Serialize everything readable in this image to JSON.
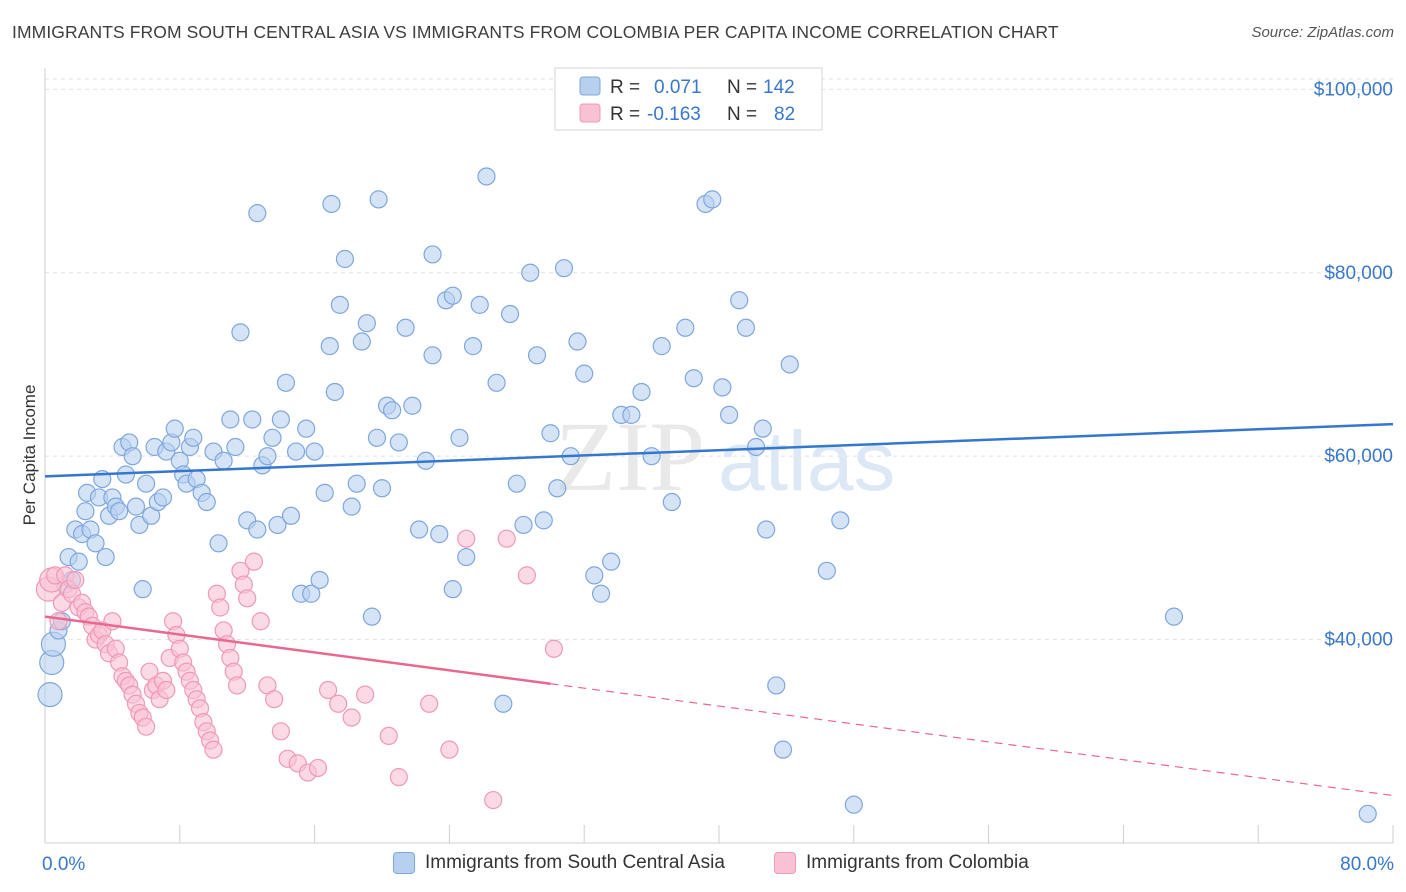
{
  "title": "IMMIGRANTS FROM SOUTH CENTRAL ASIA VS IMMIGRANTS FROM COLOMBIA PER CAPITA INCOME CORRELATION CHART",
  "source": "Source: ZipAtlas.com",
  "watermark": {
    "zip": "ZIP",
    "atlas": "atlas"
  },
  "legend_stats": [
    {
      "r_label": "R =",
      "r_value": "0.071",
      "n_label": "N =",
      "n_value": "142"
    },
    {
      "r_label": "R =",
      "r_value": "-0.163",
      "n_label": "N =",
      "n_value": "82"
    }
  ],
  "colors": {
    "blue_fill": "#b8d0f0",
    "blue_stroke": "#7fa7dd",
    "blue_line": "#3477cf",
    "pink_fill": "#f8c2d4",
    "pink_stroke": "#f098b7",
    "pink_line": "#e8688f",
    "value_text": "#3777cc",
    "grid": "#e1e1e1"
  },
  "chart_data": {
    "type": "scatter",
    "title": "IMMIGRANTS FROM SOUTH CENTRAL ASIA VS IMMIGRANTS FROM COLOMBIA PER CAPITA INCOME CORRELATION CHART",
    "xlabel": "",
    "ylabel": "Per Capita Income",
    "xlim": [
      0,
      80
    ],
    "ylim": [
      20000,
      102000
    ],
    "x_tick_labels": [
      {
        "value": 0,
        "label": "0.0%"
      },
      {
        "value": 80,
        "label": "80.0%"
      }
    ],
    "x_minor_ticks": [
      0,
      8,
      16,
      24,
      32,
      40,
      48,
      56,
      64,
      72,
      80
    ],
    "y_ticks": [
      {
        "value": 40000,
        "label": "$40,000"
      },
      {
        "value": 60000,
        "label": "$60,000"
      },
      {
        "value": 80000,
        "label": "$80,000"
      },
      {
        "value": 100000,
        "label": "$100,000"
      }
    ],
    "grid": true,
    "legend_position": "top-center",
    "series": [
      {
        "name": "Immigrants from South Central Asia",
        "color": "#7fa7dd",
        "r": 0.071,
        "n": 142,
        "trend": {
          "x": [
            0,
            80
          ],
          "y": [
            57800,
            63500
          ],
          "dashed_from_x": null
        },
        "points": [
          [
            0.3,
            34000
          ],
          [
            0.4,
            37500
          ],
          [
            0.5,
            39500
          ],
          [
            0.8,
            41000
          ],
          [
            1.0,
            42000
          ],
          [
            1.2,
            46000
          ],
          [
            1.4,
            49000
          ],
          [
            1.6,
            46500
          ],
          [
            1.8,
            52000
          ],
          [
            2.0,
            48500
          ],
          [
            2.2,
            51500
          ],
          [
            2.4,
            54000
          ],
          [
            2.5,
            56000
          ],
          [
            2.7,
            52000
          ],
          [
            3.0,
            50500
          ],
          [
            3.2,
            55500
          ],
          [
            3.4,
            57500
          ],
          [
            3.6,
            49000
          ],
          [
            3.8,
            53500
          ],
          [
            4.0,
            55500
          ],
          [
            4.2,
            54500
          ],
          [
            4.4,
            54000
          ],
          [
            4.6,
            61000
          ],
          [
            4.8,
            58000
          ],
          [
            5.0,
            61500
          ],
          [
            5.2,
            60000
          ],
          [
            5.4,
            54500
          ],
          [
            5.6,
            52500
          ],
          [
            5.8,
            45500
          ],
          [
            6.0,
            57000
          ],
          [
            6.3,
            53500
          ],
          [
            6.5,
            61000
          ],
          [
            6.7,
            55000
          ],
          [
            7.0,
            55500
          ],
          [
            7.2,
            60500
          ],
          [
            7.5,
            61500
          ],
          [
            7.7,
            63000
          ],
          [
            8.0,
            59500
          ],
          [
            8.2,
            58000
          ],
          [
            8.4,
            57000
          ],
          [
            8.6,
            61000
          ],
          [
            8.8,
            62000
          ],
          [
            9.0,
            57500
          ],
          [
            9.3,
            56000
          ],
          [
            9.6,
            55000
          ],
          [
            10.0,
            60500
          ],
          [
            10.3,
            50500
          ],
          [
            10.6,
            59500
          ],
          [
            11.0,
            64000
          ],
          [
            11.3,
            61000
          ],
          [
            11.6,
            73500
          ],
          [
            12.0,
            53000
          ],
          [
            12.3,
            64000
          ],
          [
            12.6,
            52000
          ],
          [
            12.9,
            59000
          ],
          [
            13.2,
            60000
          ],
          [
            13.5,
            62000
          ],
          [
            13.8,
            52500
          ],
          [
            14.0,
            64000
          ],
          [
            14.3,
            68000
          ],
          [
            14.6,
            53500
          ],
          [
            14.9,
            60500
          ],
          [
            15.2,
            45000
          ],
          [
            15.5,
            63000
          ],
          [
            15.8,
            45000
          ],
          [
            16.0,
            60500
          ],
          [
            16.3,
            46500
          ],
          [
            16.6,
            56000
          ],
          [
            16.9,
            72000
          ],
          [
            17.2,
            67000
          ],
          [
            17.5,
            76500
          ],
          [
            17.8,
            81500
          ],
          [
            18.2,
            54500
          ],
          [
            18.5,
            57000
          ],
          [
            18.8,
            72500
          ],
          [
            19.1,
            74500
          ],
          [
            19.4,
            42500
          ],
          [
            19.7,
            62000
          ],
          [
            20.0,
            56500
          ],
          [
            20.3,
            65500
          ],
          [
            20.6,
            65000
          ],
          [
            21.0,
            61500
          ],
          [
            21.4,
            74000
          ],
          [
            21.8,
            65500
          ],
          [
            22.2,
            52000
          ],
          [
            22.6,
            59500
          ],
          [
            23.0,
            71000
          ],
          [
            23.4,
            51500
          ],
          [
            23.8,
            77000
          ],
          [
            24.2,
            45500
          ],
          [
            24.6,
            62000
          ],
          [
            25.0,
            49000
          ],
          [
            25.4,
            72000
          ],
          [
            25.8,
            76500
          ],
          [
            26.2,
            90500
          ],
          [
            26.8,
            68000
          ],
          [
            27.2,
            33000
          ],
          [
            27.6,
            75500
          ],
          [
            28.0,
            57000
          ],
          [
            28.4,
            52500
          ],
          [
            28.8,
            80000
          ],
          [
            29.2,
            71000
          ],
          [
            29.6,
            53000
          ],
          [
            30.0,
            62500
          ],
          [
            30.4,
            56500
          ],
          [
            30.8,
            80500
          ],
          [
            31.2,
            60000
          ],
          [
            31.6,
            72500
          ],
          [
            32.0,
            69000
          ],
          [
            32.6,
            47000
          ],
          [
            33.0,
            45000
          ],
          [
            33.6,
            48500
          ],
          [
            34.2,
            64500
          ],
          [
            34.8,
            64500
          ],
          [
            35.4,
            67000
          ],
          [
            36.0,
            60000
          ],
          [
            36.6,
            72000
          ],
          [
            37.2,
            55000
          ],
          [
            38.0,
            74000
          ],
          [
            38.5,
            68500
          ],
          [
            39.2,
            87500
          ],
          [
            39.6,
            88000
          ],
          [
            40.2,
            67500
          ],
          [
            40.6,
            64500
          ],
          [
            41.2,
            77000
          ],
          [
            41.6,
            74000
          ],
          [
            42.2,
            61000
          ],
          [
            42.6,
            63000
          ],
          [
            42.8,
            52000
          ],
          [
            43.4,
            35000
          ],
          [
            43.8,
            28000
          ],
          [
            44.2,
            70000
          ],
          [
            46.4,
            47500
          ],
          [
            47.2,
            53000
          ],
          [
            48.0,
            22000
          ],
          [
            12.6,
            86500
          ],
          [
            17.0,
            87500
          ],
          [
            19.8,
            88000
          ],
          [
            23.0,
            82000
          ],
          [
            24.2,
            77500
          ],
          [
            67.0,
            42500
          ],
          [
            78.5,
            21000
          ]
        ]
      },
      {
        "name": "Immigrants from Colombia",
        "color": "#f098b7",
        "r": -0.163,
        "n": 82,
        "trend": {
          "x": [
            0,
            80
          ],
          "y": [
            42500,
            23000
          ],
          "dashed_from_x": 30
        },
        "points": [
          [
            0.2,
            45500
          ],
          [
            0.4,
            46500
          ],
          [
            0.6,
            47000
          ],
          [
            0.8,
            42000
          ],
          [
            1.0,
            44000
          ],
          [
            1.2,
            47000
          ],
          [
            1.4,
            45500
          ],
          [
            1.6,
            45000
          ],
          [
            1.8,
            46500
          ],
          [
            2.0,
            43500
          ],
          [
            2.2,
            44000
          ],
          [
            2.4,
            43000
          ],
          [
            2.6,
            42500
          ],
          [
            2.8,
            41500
          ],
          [
            3.0,
            40000
          ],
          [
            3.2,
            40500
          ],
          [
            3.4,
            41000
          ],
          [
            3.6,
            39500
          ],
          [
            3.8,
            38500
          ],
          [
            4.0,
            42000
          ],
          [
            4.2,
            39000
          ],
          [
            4.4,
            37500
          ],
          [
            4.6,
            36000
          ],
          [
            4.8,
            35500
          ],
          [
            5.0,
            35000
          ],
          [
            5.2,
            34000
          ],
          [
            5.4,
            33000
          ],
          [
            5.6,
            32000
          ],
          [
            5.8,
            31500
          ],
          [
            6.0,
            30500
          ],
          [
            6.2,
            36500
          ],
          [
            6.4,
            34500
          ],
          [
            6.6,
            35000
          ],
          [
            6.8,
            33500
          ],
          [
            7.0,
            35500
          ],
          [
            7.2,
            34500
          ],
          [
            7.4,
            38000
          ],
          [
            7.6,
            42000
          ],
          [
            7.8,
            40500
          ],
          [
            8.0,
            39000
          ],
          [
            8.2,
            37500
          ],
          [
            8.4,
            36500
          ],
          [
            8.6,
            35500
          ],
          [
            8.8,
            34500
          ],
          [
            9.0,
            33500
          ],
          [
            9.2,
            32500
          ],
          [
            9.4,
            31000
          ],
          [
            9.6,
            30000
          ],
          [
            9.8,
            29000
          ],
          [
            10.0,
            28000
          ],
          [
            10.2,
            45000
          ],
          [
            10.4,
            43500
          ],
          [
            10.6,
            41000
          ],
          [
            10.8,
            39500
          ],
          [
            11.0,
            38000
          ],
          [
            11.2,
            36500
          ],
          [
            11.4,
            35000
          ],
          [
            11.6,
            47500
          ],
          [
            11.8,
            46000
          ],
          [
            12.0,
            44500
          ],
          [
            12.4,
            48500
          ],
          [
            12.8,
            42000
          ],
          [
            13.2,
            35000
          ],
          [
            13.6,
            33500
          ],
          [
            14.0,
            30000
          ],
          [
            14.4,
            27000
          ],
          [
            15.0,
            26500
          ],
          [
            15.6,
            25500
          ],
          [
            16.2,
            26000
          ],
          [
            16.8,
            34500
          ],
          [
            17.4,
            33000
          ],
          [
            18.2,
            31500
          ],
          [
            19.0,
            34000
          ],
          [
            20.4,
            29500
          ],
          [
            21.0,
            25000
          ],
          [
            22.8,
            33000
          ],
          [
            24.0,
            28000
          ],
          [
            25.0,
            51000
          ],
          [
            26.6,
            22500
          ],
          [
            27.4,
            51000
          ],
          [
            28.6,
            47000
          ],
          [
            30.2,
            39000
          ]
        ]
      }
    ]
  },
  "bottom_legend": [
    {
      "label": "Immigrants from South Central Asia"
    },
    {
      "label": "Immigrants from Colombia"
    }
  ]
}
